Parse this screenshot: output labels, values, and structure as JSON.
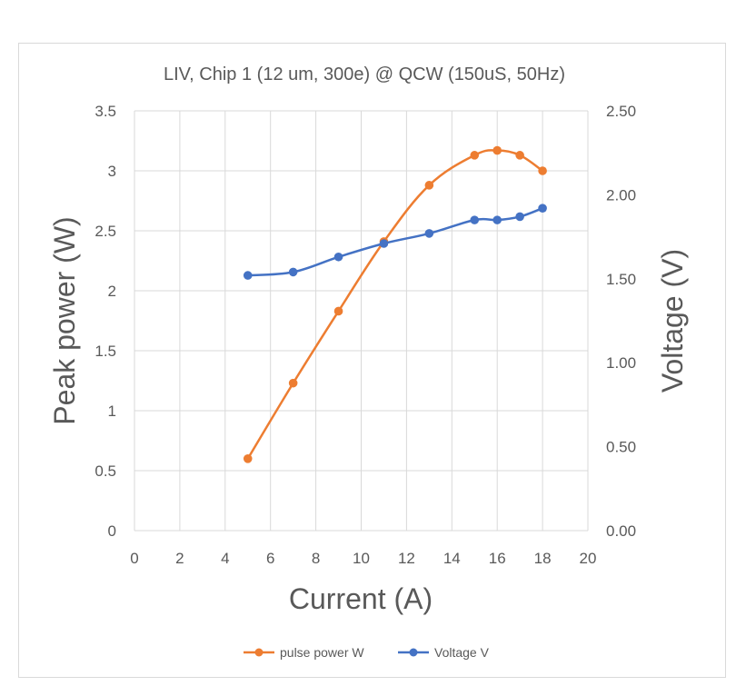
{
  "chart_data": {
    "type": "line",
    "title": "LIV, Chip 1 (12 um, 300e) @ QCW (150uS, 50Hz)",
    "xlabel": "Current (A)",
    "ylabel": "Peak power (W)",
    "y2label": "Voltage (V)",
    "xlim": [
      0,
      20
    ],
    "ylim": [
      0,
      3.5
    ],
    "y2lim": [
      0,
      2.5
    ],
    "x_ticks": [
      "0",
      "2",
      "4",
      "6",
      "8",
      "10",
      "12",
      "14",
      "16",
      "18",
      "20"
    ],
    "y_ticks": [
      "0",
      "0.5",
      "1",
      "1.5",
      "2",
      "2.5",
      "3",
      "3.5"
    ],
    "y2_ticks": [
      "0.00",
      "0.50",
      "1.00",
      "1.50",
      "2.00",
      "2.50"
    ],
    "grid": true,
    "legend_position": "bottom",
    "series": [
      {
        "name": "pulse power W",
        "axis": "left",
        "color": "#ED7D31",
        "x": [
          5,
          7,
          9,
          11,
          13,
          15,
          16,
          17,
          18
        ],
        "y": [
          0.6,
          1.23,
          1.83,
          2.41,
          2.88,
          3.13,
          3.17,
          3.13,
          3.0
        ]
      },
      {
        "name": "Voltage V",
        "axis": "right",
        "color": "#4472C4",
        "x": [
          5,
          7,
          9,
          11,
          13,
          15,
          16,
          17,
          18
        ],
        "y": [
          1.52,
          1.54,
          1.63,
          1.71,
          1.77,
          1.85,
          1.85,
          1.87,
          1.92
        ]
      }
    ]
  }
}
